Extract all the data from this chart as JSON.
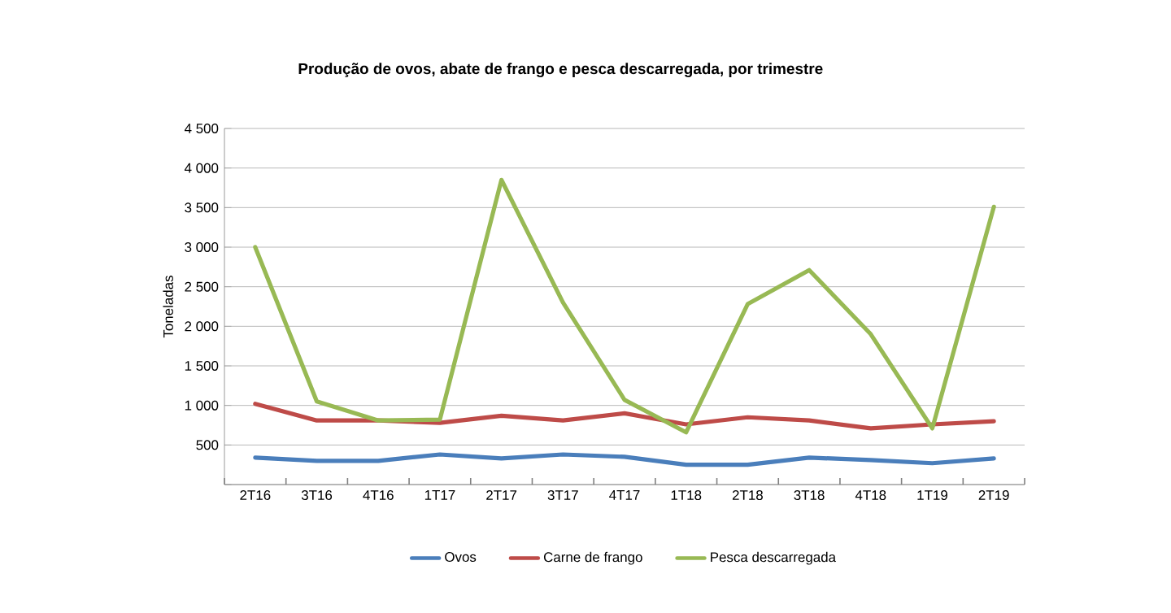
{
  "chart_data": {
    "type": "line",
    "title": "Produção de ovos, abate de frango e pesca descarregada, por trimestre",
    "ylabel": "Toneladas",
    "categories": [
      "2T16",
      "3T16",
      "4T16",
      "1T17",
      "2T17",
      "3T17",
      "4T17",
      "1T18",
      "2T18",
      "3T18",
      "4T18",
      "1T19",
      "2T19"
    ],
    "series": [
      {
        "name": "Ovos",
        "color": "#4a7ebb",
        "values": [
          340,
          300,
          300,
          380,
          330,
          380,
          350,
          250,
          250,
          340,
          310,
          270,
          330
        ]
      },
      {
        "name": "Carne de frango",
        "color": "#be4b48",
        "values": [
          1020,
          810,
          810,
          780,
          870,
          810,
          900,
          760,
          850,
          810,
          710,
          760,
          800
        ]
      },
      {
        "name": "Pesca descarregada",
        "color": "#98b954",
        "values": [
          3000,
          1050,
          810,
          820,
          3850,
          2300,
          1070,
          660,
          2280,
          2710,
          1900,
          710,
          3510
        ]
      }
    ],
    "ylim": [
      0,
      4500
    ],
    "yticks": [
      {
        "value": 0,
        "label": null
      },
      500,
      {
        "value": 1000,
        "label": "1 000"
      },
      {
        "value": 1500,
        "label": "1 500"
      },
      {
        "value": 2000,
        "label": "2 000"
      },
      {
        "value": 2500,
        "label": "2 500"
      },
      {
        "value": 3000,
        "label": "3 000"
      },
      {
        "value": 3500,
        "label": "3 500"
      },
      {
        "value": 4000,
        "label": "4 000"
      },
      {
        "value": 4500,
        "label": "4 500"
      }
    ],
    "grid": "y",
    "legend": "bottom",
    "marker": "none",
    "line_style": "solid"
  }
}
